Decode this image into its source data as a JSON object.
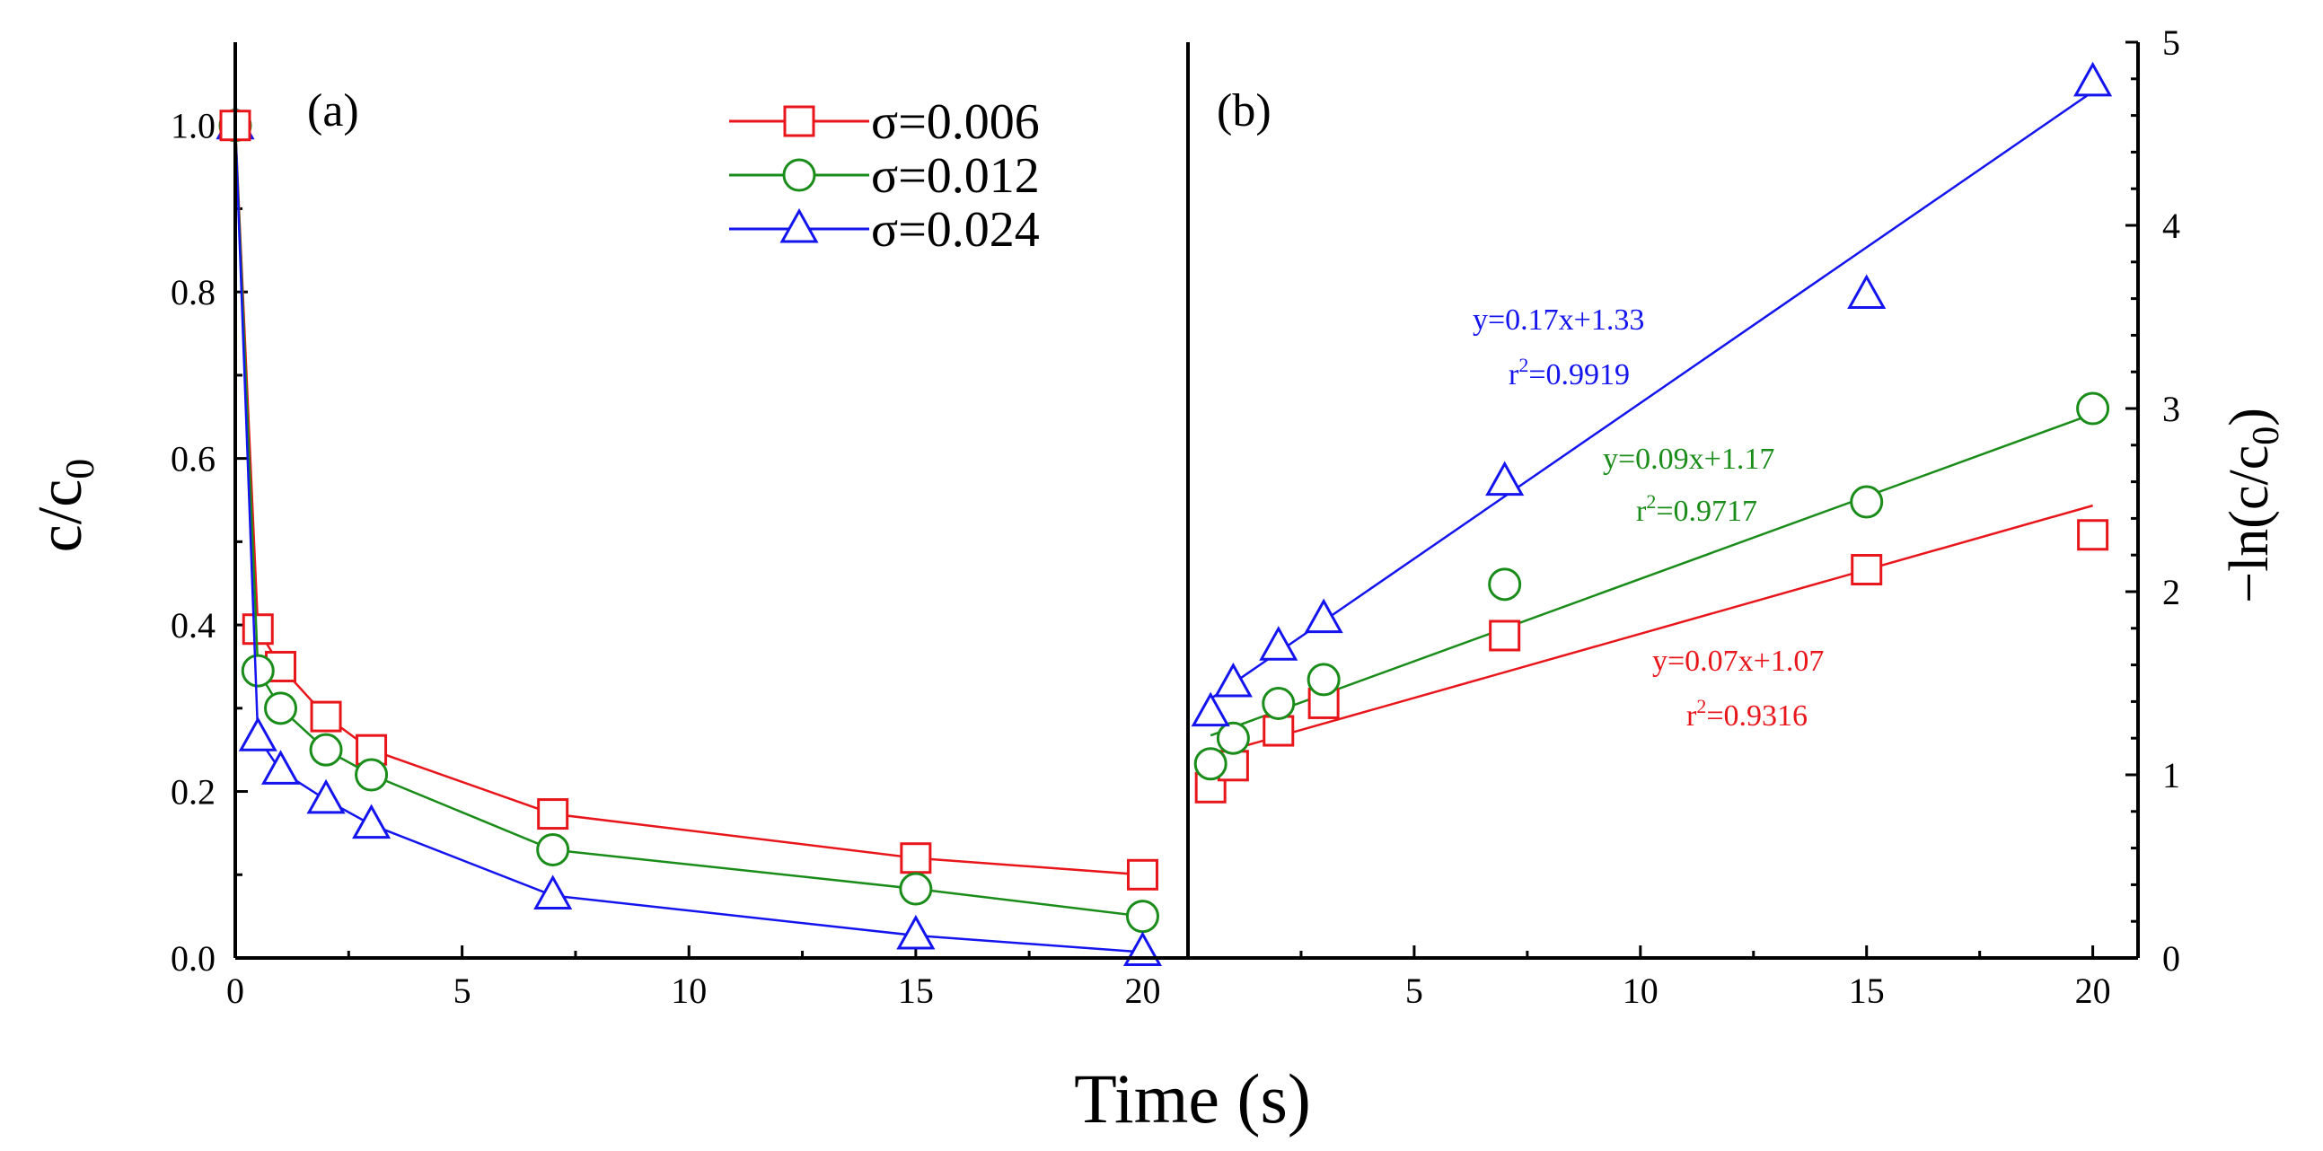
{
  "colors": {
    "s006": "#e8161b",
    "s012": "#1a8c1a",
    "s024": "#1414ee",
    "axis": "#000000"
  },
  "xlabel": "Time (s)",
  "legend": [
    {
      "key": "s006",
      "label": "σ=0.006",
      "marker": "square"
    },
    {
      "key": "s012",
      "label": "σ=0.012",
      "marker": "circle"
    },
    {
      "key": "s024",
      "label": "σ=0.024",
      "marker": "triangle"
    }
  ],
  "chart_data": [
    {
      "panel": "(a)",
      "type": "line",
      "ylabel_base": "c/c",
      "ylabel_sub": "0",
      "xlim": [
        0,
        21
      ],
      "ylim": [
        0,
        1.1
      ],
      "xticks": [
        0,
        5,
        10,
        15,
        20
      ],
      "yticks": [
        "0.0",
        "0.2",
        "0.4",
        "0.6",
        "0.8",
        "1.0"
      ],
      "x": [
        0,
        0.5,
        1,
        2,
        3,
        7,
        15,
        20
      ],
      "series": [
        {
          "name": "σ=0.006",
          "key": "s006",
          "marker": "square",
          "values": [
            1.0,
            0.395,
            0.35,
            0.29,
            0.25,
            0.173,
            0.12,
            0.1
          ]
        },
        {
          "name": "σ=0.012",
          "key": "s012",
          "marker": "circle",
          "values": [
            1.0,
            0.345,
            0.3,
            0.25,
            0.22,
            0.13,
            0.083,
            0.05
          ]
        },
        {
          "name": "σ=0.024",
          "key": "s024",
          "marker": "triangle",
          "values": [
            1.0,
            0.265,
            0.225,
            0.19,
            0.16,
            0.075,
            0.027,
            0.007
          ]
        }
      ]
    },
    {
      "panel": "(b)",
      "type": "scatter",
      "ylabel_pre": "−ln(c/c",
      "ylabel_sub": "0",
      "ylabel_post": ")",
      "xlim": [
        0,
        21
      ],
      "ylim": [
        0,
        5
      ],
      "xticks": [
        5,
        10,
        15,
        20
      ],
      "yticks": [
        0,
        1,
        2,
        3,
        4,
        5
      ],
      "x": [
        0.5,
        1,
        2,
        3,
        7,
        15,
        20
      ],
      "series": [
        {
          "name": "σ=0.006",
          "key": "s006",
          "marker": "square",
          "values": [
            0.93,
            1.05,
            1.24,
            1.39,
            1.76,
            2.12,
            2.31
          ],
          "fit": {
            "slope": 0.07,
            "intercept": 1.07,
            "x_range": [
              0.5,
              20
            ],
            "equation": "y=0.07x+1.07",
            "r2_base": "r",
            "r2_sup": "2",
            "r2_value": "=0.9316"
          }
        },
        {
          "name": "σ=0.012",
          "key": "s012",
          "marker": "circle",
          "values": [
            1.06,
            1.2,
            1.39,
            1.52,
            2.04,
            2.49,
            3.0
          ],
          "fit": {
            "slope": 0.09,
            "intercept": 1.17,
            "x_range": [
              0.5,
              20
            ],
            "equation": "y=0.09x+1.17",
            "r2_base": "r",
            "r2_sup": "2",
            "r2_value": "=0.9717"
          }
        },
        {
          "name": "σ=0.024",
          "key": "s024",
          "marker": "triangle",
          "values": [
            1.34,
            1.5,
            1.7,
            1.85,
            2.6,
            3.62,
            4.78
          ],
          "fit": {
            "slope": 0.17,
            "intercept": 1.33,
            "x_range": [
              0.5,
              20
            ],
            "equation": "y=0.17x+1.33",
            "r2_base": "r",
            "r2_sup": "2",
            "r2_value": "=0.9919"
          }
        }
      ]
    }
  ]
}
